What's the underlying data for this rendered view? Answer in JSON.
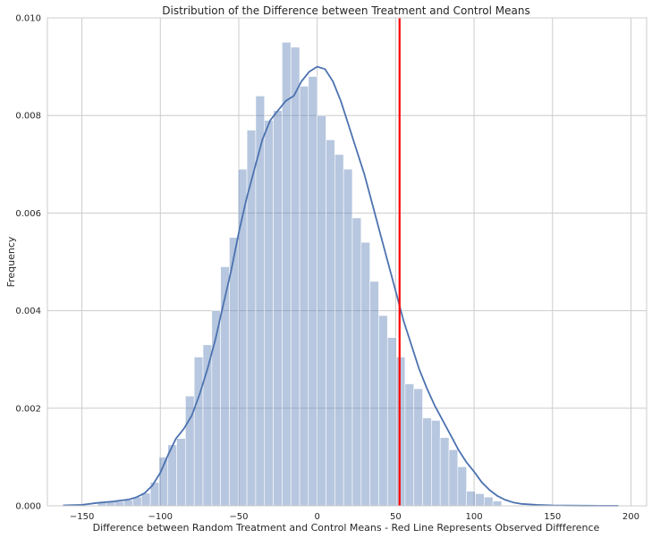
{
  "chart_data": {
    "type": "bar",
    "title": "Distribution of the Difference between Treatment and Control Means",
    "xlabel": "Difference between Random Treatment and Control Means - Red Line Represents Observed Diffference",
    "ylabel": "Frequency",
    "xlim": [
      -172,
      210
    ],
    "ylim": [
      0,
      0.01
    ],
    "x_ticks": [
      -150,
      -100,
      -50,
      0,
      50,
      100,
      150,
      200
    ],
    "x_tick_labels": [
      "−150",
      "−100",
      "−50",
      "0",
      "50",
      "100",
      "150",
      "200"
    ],
    "y_ticks": [
      0,
      0.002,
      0.004,
      0.006,
      0.008,
      0.01
    ],
    "y_tick_labels": [
      "0.000",
      "0.002",
      "0.004",
      "0.006",
      "0.008",
      "0.010"
    ],
    "grid": true,
    "histogram": {
      "bin_edges": [
        -140,
        -134.4,
        -128.8,
        -123.2,
        -117.6,
        -112,
        -106.4,
        -100.8,
        -95.2,
        -89.6,
        -84,
        -78.4,
        -72.8,
        -67.2,
        -61.6,
        -56,
        -50.4,
        -44.8,
        -39.2,
        -33.6,
        -28,
        -22.4,
        -16.8,
        -11.2,
        -5.6,
        0,
        5.6,
        11.2,
        16.8,
        22.4,
        28,
        33.6,
        39.2,
        44.8,
        50.4,
        56,
        61.6,
        67.2,
        72.8,
        78.4,
        84,
        89.6,
        95.2,
        100.8,
        106.4,
        112,
        117.6
      ],
      "values": [
        6e-05,
        8e-05,
        9e-05,
        0.00012,
        0.00018,
        0.00026,
        0.00048,
        0.001,
        0.00125,
        0.00138,
        0.00225,
        0.00305,
        0.0033,
        0.004,
        0.0049,
        0.0055,
        0.0069,
        0.0077,
        0.0084,
        0.0079,
        0.0081,
        0.0095,
        0.0094,
        0.0086,
        0.0088,
        0.008,
        0.0075,
        0.0072,
        0.0069,
        0.0059,
        0.0054,
        0.0046,
        0.0039,
        0.00345,
        0.00305,
        0.0025,
        0.0024,
        0.0018,
        0.00175,
        0.0014,
        0.00115,
        0.0008,
        0.0003,
        0.00025,
        0.00018,
        0.0001
      ],
      "color": "#4c72b0",
      "opacity": 0.4
    },
    "kde": {
      "x": [
        -162,
        -150,
        -140,
        -130,
        -120,
        -115,
        -110,
        -105,
        -100,
        -95,
        -90,
        -85,
        -80,
        -75,
        -70,
        -65,
        -60,
        -55,
        -50,
        -45,
        -40,
        -35,
        -30,
        -25,
        -20,
        -15,
        -10,
        -5,
        0,
        5,
        10,
        15,
        20,
        25,
        30,
        35,
        40,
        45,
        50,
        55,
        60,
        65,
        70,
        75,
        80,
        85,
        90,
        95,
        100,
        105,
        110,
        115,
        120,
        125,
        130,
        140,
        150,
        160,
        170,
        180,
        192
      ],
      "y": [
        1e-05,
        2e-05,
        6e-05,
        9e-05,
        0.00013,
        0.00018,
        0.00026,
        0.00042,
        0.00068,
        0.00105,
        0.00138,
        0.00158,
        0.00185,
        0.00228,
        0.0028,
        0.0034,
        0.0041,
        0.0048,
        0.0056,
        0.0063,
        0.0069,
        0.0075,
        0.0079,
        0.0081,
        0.0083,
        0.0084,
        0.0087,
        0.0089,
        0.009,
        0.00895,
        0.0087,
        0.0083,
        0.0078,
        0.0073,
        0.0068,
        0.0062,
        0.0056,
        0.005,
        0.0044,
        0.0038,
        0.0033,
        0.0028,
        0.0024,
        0.00205,
        0.00175,
        0.00145,
        0.00115,
        0.0009,
        0.0007,
        0.00048,
        0.00032,
        0.0002,
        0.00012,
        7e-05,
        4e-05,
        2e-05,
        1e-05,
        5e-06,
        3e-06,
        2e-06,
        1e-06
      ],
      "color": "#4c72b0"
    },
    "observed_line": {
      "x": 52.5,
      "color": "#ff0000"
    }
  }
}
